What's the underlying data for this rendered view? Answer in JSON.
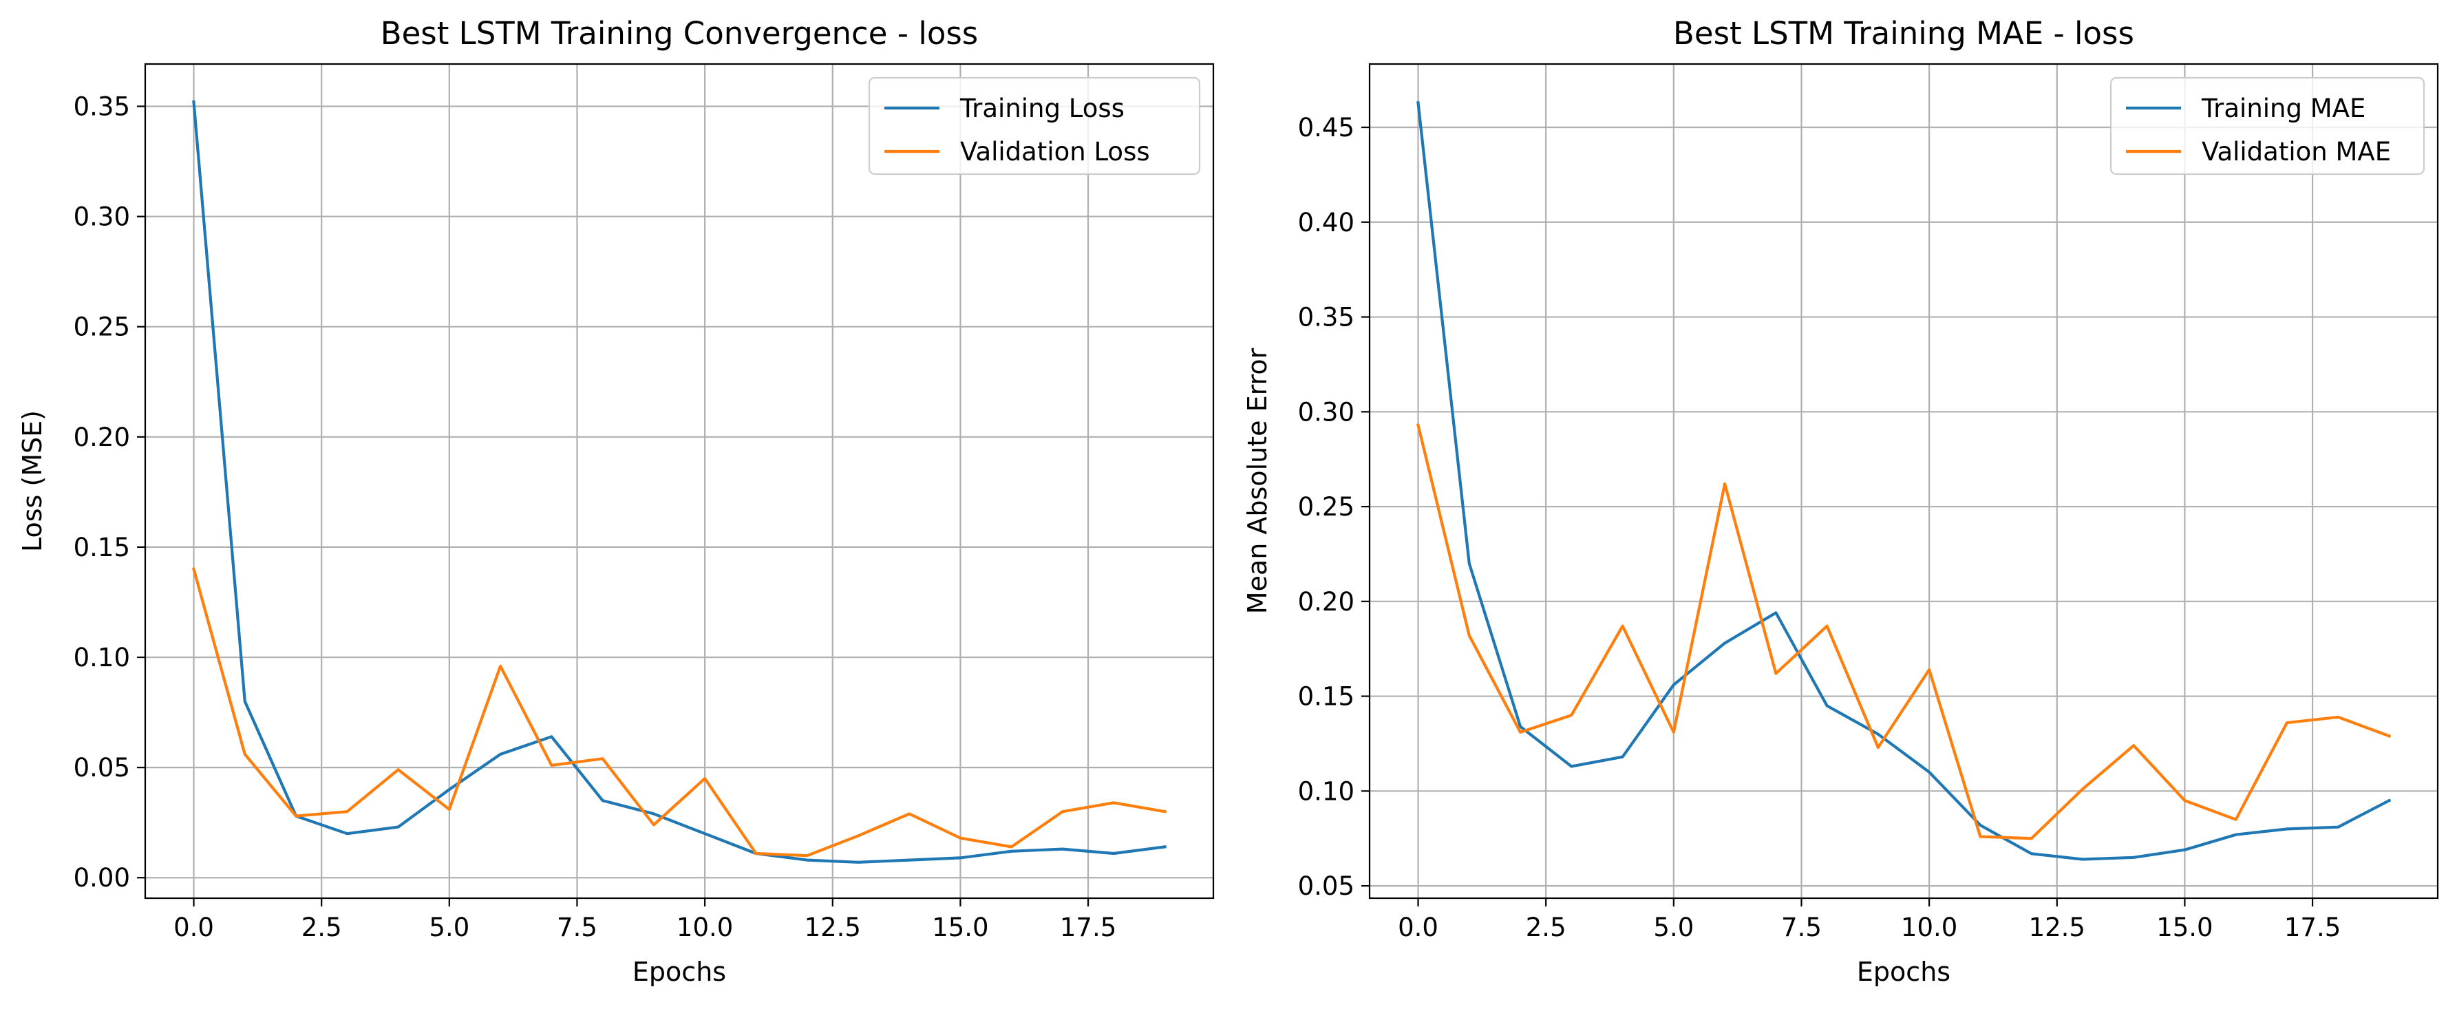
{
  "chart_data": [
    {
      "type": "line",
      "title": "Best LSTM Training Convergence - loss",
      "xlabel": "Epochs",
      "ylabel": "Loss (MSE)",
      "xlim": [
        -0.95,
        19.95
      ],
      "ylim": [
        -0.0093,
        0.3692
      ],
      "xticks": [
        0.0,
        2.5,
        5.0,
        7.5,
        10.0,
        12.5,
        15.0,
        17.5
      ],
      "xtick_labels": [
        "0.0",
        "2.5",
        "5.0",
        "7.5",
        "10.0",
        "12.5",
        "15.0",
        "17.5"
      ],
      "yticks": [
        0.0,
        0.05,
        0.1,
        0.15,
        0.2,
        0.25,
        0.3,
        0.35
      ],
      "ytick_labels": [
        "0.00",
        "0.05",
        "0.10",
        "0.15",
        "0.20",
        "0.25",
        "0.30",
        "0.35"
      ],
      "grid": true,
      "legend_position": "upper right",
      "x": [
        0,
        1,
        2,
        3,
        4,
        5,
        6,
        7,
        8,
        9,
        10,
        11,
        12,
        13,
        14,
        15,
        16,
        17,
        18,
        19
      ],
      "series": [
        {
          "name": "Training Loss",
          "color": "#1f77b4",
          "values": [
            0.352,
            0.08,
            0.028,
            0.02,
            0.023,
            0.04,
            0.056,
            0.064,
            0.035,
            0.029,
            0.02,
            0.011,
            0.008,
            0.007,
            0.008,
            0.009,
            0.012,
            0.013,
            0.011,
            0.014
          ]
        },
        {
          "name": "Validation Loss",
          "color": "#ff7f0e",
          "values": [
            0.14,
            0.056,
            0.028,
            0.03,
            0.049,
            0.031,
            0.096,
            0.051,
            0.054,
            0.024,
            0.045,
            0.011,
            0.01,
            0.019,
            0.029,
            0.018,
            0.014,
            0.03,
            0.034,
            0.03
          ]
        }
      ]
    },
    {
      "type": "line",
      "title": "Best LSTM Training MAE - loss",
      "xlabel": "Epochs",
      "ylabel": "Mean Absolute Error",
      "xlim": [
        -0.95,
        19.95
      ],
      "ylim": [
        0.0435,
        0.4834
      ],
      "xticks": [
        0.0,
        2.5,
        5.0,
        7.5,
        10.0,
        12.5,
        15.0,
        17.5
      ],
      "xtick_labels": [
        "0.0",
        "2.5",
        "5.0",
        "7.5",
        "10.0",
        "12.5",
        "15.0",
        "17.5"
      ],
      "yticks": [
        0.05,
        0.1,
        0.15,
        0.2,
        0.25,
        0.3,
        0.35,
        0.4,
        0.45
      ],
      "ytick_labels": [
        "0.05",
        "0.10",
        "0.15",
        "0.20",
        "0.25",
        "0.30",
        "0.35",
        "0.40",
        "0.45"
      ],
      "grid": true,
      "legend_position": "upper right",
      "x": [
        0,
        1,
        2,
        3,
        4,
        5,
        6,
        7,
        8,
        9,
        10,
        11,
        12,
        13,
        14,
        15,
        16,
        17,
        18,
        19
      ],
      "series": [
        {
          "name": "Training MAE",
          "color": "#1f77b4",
          "values": [
            0.463,
            0.22,
            0.134,
            0.113,
            0.118,
            0.156,
            0.178,
            0.194,
            0.145,
            0.13,
            0.11,
            0.082,
            0.067,
            0.064,
            0.065,
            0.069,
            0.077,
            0.08,
            0.081,
            0.095
          ]
        },
        {
          "name": "Validation MAE",
          "color": "#ff7f0e",
          "values": [
            0.293,
            0.182,
            0.131,
            0.14,
            0.187,
            0.131,
            0.262,
            0.162,
            0.187,
            0.123,
            0.164,
            0.076,
            0.075,
            0.101,
            0.124,
            0.095,
            0.085,
            0.136,
            0.139,
            0.129
          ]
        }
      ]
    }
  ]
}
